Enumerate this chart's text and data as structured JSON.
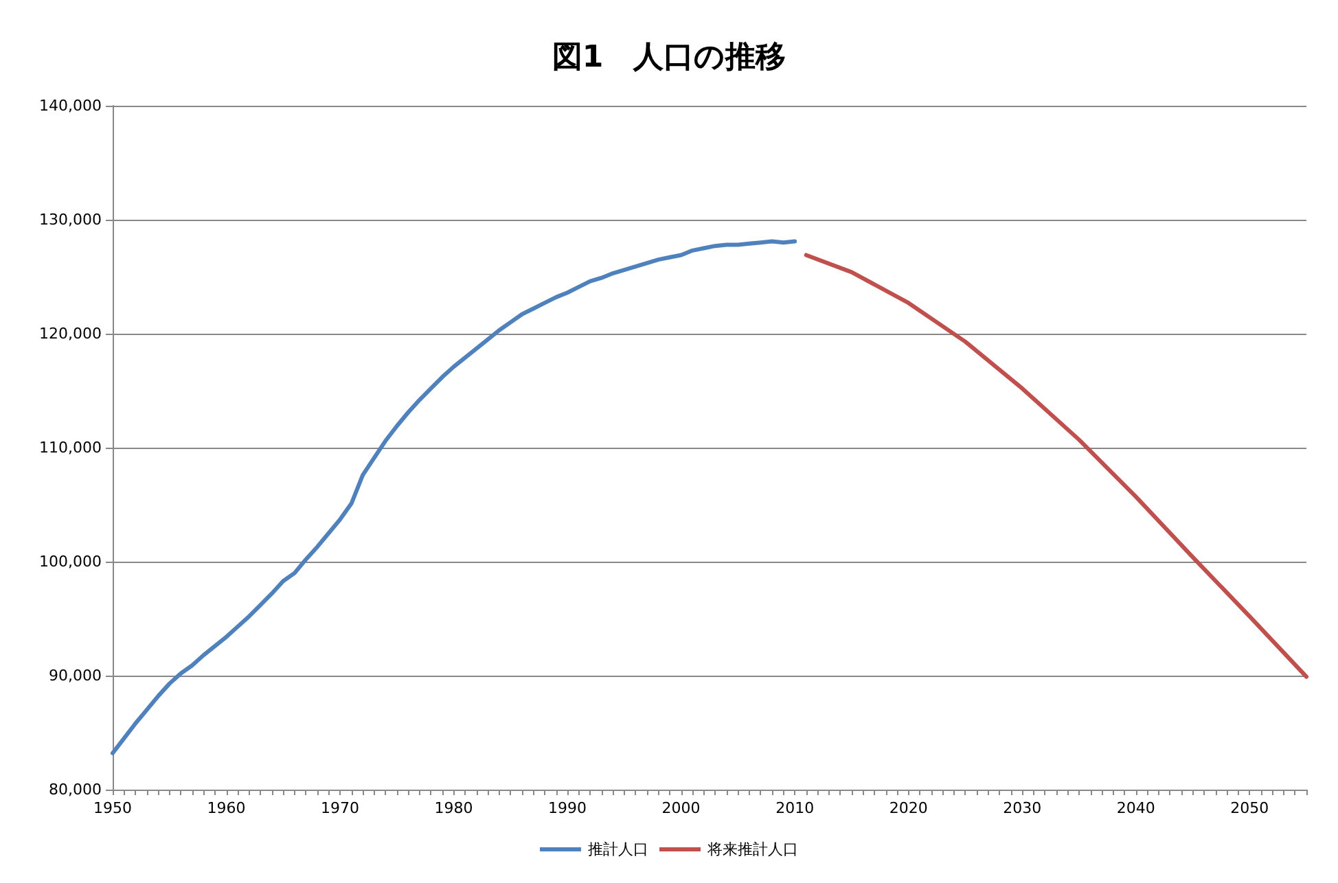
{
  "chart_data": {
    "type": "line",
    "title": "図1　人口の推移",
    "xlim": [
      1950,
      2055
    ],
    "xticks": [
      {
        "value": 1950,
        "label": "1950"
      },
      {
        "value": 1951,
        "label": null
      },
      {
        "value": 1952,
        "label": null
      },
      {
        "value": 1953,
        "label": null
      },
      {
        "value": 1954,
        "label": null
      },
      {
        "value": 1955,
        "label": null
      },
      {
        "value": 1956,
        "label": null
      },
      {
        "value": 1957,
        "label": null
      },
      {
        "value": 1958,
        "label": null
      },
      {
        "value": 1959,
        "label": null
      },
      {
        "value": 1960,
        "label": "1960"
      },
      {
        "value": 1961,
        "label": null
      },
      {
        "value": 1962,
        "label": null
      },
      {
        "value": 1963,
        "label": null
      },
      {
        "value": 1964,
        "label": null
      },
      {
        "value": 1965,
        "label": null
      },
      {
        "value": 1966,
        "label": null
      },
      {
        "value": 1967,
        "label": null
      },
      {
        "value": 1968,
        "label": null
      },
      {
        "value": 1969,
        "label": null
      },
      {
        "value": 1970,
        "label": "1970"
      },
      {
        "value": 1971,
        "label": null
      },
      {
        "value": 1972,
        "label": null
      },
      {
        "value": 1973,
        "label": null
      },
      {
        "value": 1974,
        "label": null
      },
      {
        "value": 1975,
        "label": null
      },
      {
        "value": 1976,
        "label": null
      },
      {
        "value": 1977,
        "label": null
      },
      {
        "value": 1978,
        "label": null
      },
      {
        "value": 1979,
        "label": null
      },
      {
        "value": 1980,
        "label": "1980"
      },
      {
        "value": 1981,
        "label": null
      },
      {
        "value": 1982,
        "label": null
      },
      {
        "value": 1983,
        "label": null
      },
      {
        "value": 1984,
        "label": null
      },
      {
        "value": 1985,
        "label": null
      },
      {
        "value": 1986,
        "label": null
      },
      {
        "value": 1987,
        "label": null
      },
      {
        "value": 1988,
        "label": null
      },
      {
        "value": 1989,
        "label": null
      },
      {
        "value": 1990,
        "label": "1990"
      },
      {
        "value": 1991,
        "label": null
      },
      {
        "value": 1992,
        "label": null
      },
      {
        "value": 1993,
        "label": null
      },
      {
        "value": 1994,
        "label": null
      },
      {
        "value": 1995,
        "label": null
      },
      {
        "value": 1996,
        "label": null
      },
      {
        "value": 1997,
        "label": null
      },
      {
        "value": 1998,
        "label": null
      },
      {
        "value": 1999,
        "label": null
      },
      {
        "value": 2000,
        "label": "2000"
      },
      {
        "value": 2001,
        "label": null
      },
      {
        "value": 2002,
        "label": null
      },
      {
        "value": 2003,
        "label": null
      },
      {
        "value": 2004,
        "label": null
      },
      {
        "value": 2005,
        "label": null
      },
      {
        "value": 2006,
        "label": null
      },
      {
        "value": 2007,
        "label": null
      },
      {
        "value": 2008,
        "label": null
      },
      {
        "value": 2009,
        "label": null
      },
      {
        "value": 2010,
        "label": "2010"
      },
      {
        "value": 2011,
        "label": null
      },
      {
        "value": 2012,
        "label": null
      },
      {
        "value": 2013,
        "label": null
      },
      {
        "value": 2014,
        "label": null
      },
      {
        "value": 2015,
        "label": null
      },
      {
        "value": 2016,
        "label": null
      },
      {
        "value": 2017,
        "label": null
      },
      {
        "value": 2018,
        "label": null
      },
      {
        "value": 2019,
        "label": null
      },
      {
        "value": 2020,
        "label": "2020"
      },
      {
        "value": 2021,
        "label": null
      },
      {
        "value": 2022,
        "label": null
      },
      {
        "value": 2023,
        "label": null
      },
      {
        "value": 2024,
        "label": null
      },
      {
        "value": 2025,
        "label": null
      },
      {
        "value": 2026,
        "label": null
      },
      {
        "value": 2027,
        "label": null
      },
      {
        "value": 2028,
        "label": null
      },
      {
        "value": 2029,
        "label": null
      },
      {
        "value": 2030,
        "label": "2030"
      },
      {
        "value": 2031,
        "label": null
      },
      {
        "value": 2032,
        "label": null
      },
      {
        "value": 2033,
        "label": null
      },
      {
        "value": 2034,
        "label": null
      },
      {
        "value": 2035,
        "label": null
      },
      {
        "value": 2036,
        "label": null
      },
      {
        "value": 2037,
        "label": null
      },
      {
        "value": 2038,
        "label": null
      },
      {
        "value": 2039,
        "label": null
      },
      {
        "value": 2040,
        "label": "2040"
      },
      {
        "value": 2041,
        "label": null
      },
      {
        "value": 2042,
        "label": null
      },
      {
        "value": 2043,
        "label": null
      },
      {
        "value": 2044,
        "label": null
      },
      {
        "value": 2045,
        "label": null
      },
      {
        "value": 2046,
        "label": null
      },
      {
        "value": 2047,
        "label": null
      },
      {
        "value": 2048,
        "label": null
      },
      {
        "value": 2049,
        "label": null
      },
      {
        "value": 2050,
        "label": "2050"
      },
      {
        "value": 2051,
        "label": null
      },
      {
        "value": 2052,
        "label": null
      },
      {
        "value": 2053,
        "label": null
      },
      {
        "value": 2054,
        "label": null
      },
      {
        "value": 2055,
        "label": null
      }
    ],
    "ylim": [
      80000,
      140000
    ],
    "yticks": [
      {
        "value": 80000,
        "label": "80,000"
      },
      {
        "value": 90000,
        "label": "90,000"
      },
      {
        "value": 100000,
        "label": "100,000"
      },
      {
        "value": 110000,
        "label": "110,000"
      },
      {
        "value": 120000,
        "label": "120,000"
      },
      {
        "value": 130000,
        "label": "130,000"
      },
      {
        "value": 140000,
        "label": "140,000"
      }
    ],
    "grid": "y",
    "legend": "bottom",
    "marker": "none",
    "line_style": "solid",
    "series": [
      {
        "name": "推計人口",
        "color": "#4f81bd",
        "x": [
          1950,
          1951,
          1952,
          1953,
          1954,
          1955,
          1956,
          1957,
          1958,
          1959,
          1960,
          1961,
          1962,
          1963,
          1964,
          1965,
          1966,
          1967,
          1968,
          1969,
          1970,
          1971,
          1972,
          1973,
          1974,
          1975,
          1976,
          1977,
          1978,
          1979,
          1980,
          1981,
          1982,
          1983,
          1984,
          1985,
          1986,
          1987,
          1988,
          1989,
          1990,
          1991,
          1992,
          1993,
          1994,
          1995,
          1996,
          1997,
          1998,
          1999,
          2000,
          2001,
          2002,
          2003,
          2004,
          2005,
          2006,
          2007,
          2008,
          2009,
          2010
        ],
        "values": [
          83200,
          84500,
          85800,
          87000,
          88200,
          89300,
          90200,
          90900,
          91800,
          92600,
          93400,
          94300,
          95200,
          96200,
          97200,
          98300,
          99000,
          100200,
          101300,
          102500,
          103700,
          105100,
          107600,
          109100,
          110600,
          111900,
          113100,
          114200,
          115200,
          116200,
          117100,
          117900,
          118700,
          119500,
          120300,
          121000,
          121700,
          122200,
          122700,
          123200,
          123600,
          124100,
          124600,
          124900,
          125300,
          125600,
          125900,
          126200,
          126500,
          126700,
          126900,
          127300,
          127500,
          127700,
          127800,
          127800,
          127900,
          128000,
          128100,
          128000,
          128100
        ]
      },
      {
        "name": "将来推計人口",
        "color": "#c0504d",
        "x": [
          2011,
          2015,
          2020,
          2025,
          2030,
          2035,
          2040,
          2045,
          2050,
          2055
        ],
        "values": [
          126900,
          125400,
          122700,
          119300,
          115200,
          110700,
          105700,
          100400,
          95200,
          89900
        ]
      }
    ]
  }
}
